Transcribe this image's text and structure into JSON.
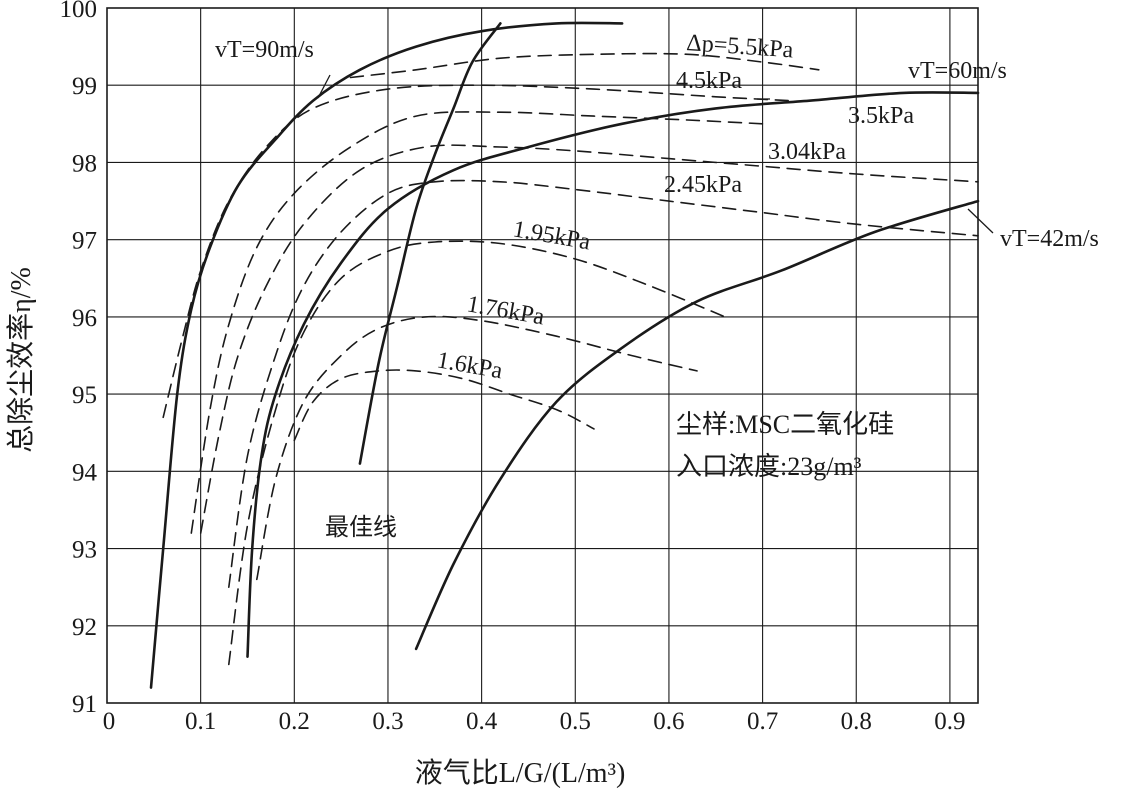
{
  "chart_data": {
    "type": "line",
    "xlabel": "液气比L/G/(L/m³)",
    "ylabel": "总除尘效率η/%",
    "xlim": [
      0,
      0.93
    ],
    "ylim": [
      91,
      100
    ],
    "x_ticks": [
      "0",
      "0.1",
      "0.2",
      "0.3",
      "0.4",
      "0.5",
      "0.6",
      "0.7",
      "0.8",
      "0.9"
    ],
    "y_ticks": [
      "91",
      "92",
      "93",
      "94",
      "95",
      "96",
      "97",
      "98",
      "99",
      "100"
    ],
    "grid": true,
    "annotations": [
      "尘样:MSC二氧化硅",
      "入口浓度:23g/m³"
    ],
    "series": [
      {
        "name": "vT=90m/s",
        "style": "solid",
        "x": [
          0.047,
          0.06,
          0.075,
          0.09,
          0.11,
          0.14,
          0.18,
          0.22,
          0.27,
          0.33,
          0.4,
          0.48,
          0.55
        ],
        "y": [
          91.2,
          93.0,
          95.0,
          96.1,
          96.9,
          97.7,
          98.3,
          98.8,
          99.2,
          99.5,
          99.7,
          99.8,
          99.8
        ]
      },
      {
        "name": "vT=60m/s",
        "style": "solid",
        "x": [
          0.15,
          0.155,
          0.165,
          0.18,
          0.21,
          0.25,
          0.3,
          0.37,
          0.45,
          0.55,
          0.65,
          0.75,
          0.85,
          0.93
        ],
        "y": [
          91.6,
          93.0,
          94.2,
          95.0,
          95.9,
          96.7,
          97.4,
          97.9,
          98.2,
          98.5,
          98.7,
          98.8,
          98.9,
          98.9
        ]
      },
      {
        "name": "vT=42m/s",
        "style": "solid",
        "x": [
          0.33,
          0.37,
          0.42,
          0.48,
          0.55,
          0.63,
          0.72,
          0.82,
          0.93
        ],
        "y": [
          91.7,
          92.8,
          93.9,
          94.9,
          95.6,
          96.2,
          96.6,
          97.1,
          97.5
        ]
      },
      {
        "name": "最佳线",
        "style": "solid",
        "x": [
          0.27,
          0.29,
          0.31,
          0.33,
          0.35,
          0.37,
          0.39,
          0.42
        ],
        "y": [
          94.1,
          95.4,
          96.4,
          97.4,
          98.1,
          98.7,
          99.3,
          99.8
        ]
      },
      {
        "name": "Δp=5.5kPa",
        "style": "dashed",
        "x": [
          0.26,
          0.33,
          0.42,
          0.52,
          0.62,
          0.7,
          0.76
        ],
        "y": [
          99.1,
          99.2,
          99.35,
          99.4,
          99.4,
          99.3,
          99.2
        ]
      },
      {
        "name": "4.5kPa",
        "style": "dashed",
        "x": [
          0.06,
          0.08,
          0.1,
          0.13,
          0.17,
          0.22,
          0.3,
          0.4,
          0.52,
          0.65,
          0.73
        ],
        "y": [
          94.7,
          95.7,
          96.6,
          97.5,
          98.2,
          98.7,
          98.95,
          99.0,
          98.95,
          98.85,
          98.8
        ]
      },
      {
        "name": "3.5kPa",
        "style": "dashed",
        "x": [
          0.09,
          0.11,
          0.13,
          0.16,
          0.2,
          0.26,
          0.33,
          0.42,
          0.52,
          0.62,
          0.7
        ],
        "y": [
          93.2,
          94.8,
          95.9,
          96.9,
          97.6,
          98.2,
          98.6,
          98.65,
          98.6,
          98.55,
          98.5
        ]
      },
      {
        "name": "3.04kPa",
        "style": "dashed",
        "x": [
          0.1,
          0.12,
          0.14,
          0.17,
          0.21,
          0.27,
          0.34,
          0.42,
          0.5,
          0.6,
          0.7,
          0.8,
          0.93
        ],
        "y": [
          93.2,
          94.5,
          95.5,
          96.4,
          97.2,
          97.9,
          98.2,
          98.2,
          98.15,
          98.05,
          97.95,
          97.85,
          97.75
        ]
      },
      {
        "name": "2.45kPa",
        "style": "dashed",
        "x": [
          0.13,
          0.15,
          0.18,
          0.21,
          0.25,
          0.3,
          0.35,
          0.42,
          0.5,
          0.6,
          0.7,
          0.8,
          0.93
        ],
        "y": [
          92.5,
          94.2,
          95.5,
          96.4,
          97.1,
          97.6,
          97.75,
          97.75,
          97.65,
          97.5,
          97.35,
          97.2,
          97.05
        ]
      },
      {
        "name": "1.95kPa",
        "style": "dashed",
        "x": [
          0.13,
          0.15,
          0.18,
          0.21,
          0.25,
          0.3,
          0.35,
          0.42,
          0.5,
          0.58,
          0.66
        ],
        "y": [
          91.5,
          93.3,
          94.8,
          95.8,
          96.5,
          96.85,
          96.97,
          96.95,
          96.75,
          96.4,
          96.0
        ]
      },
      {
        "name": "1.76kPa",
        "style": "dashed",
        "x": [
          0.16,
          0.18,
          0.21,
          0.25,
          0.29,
          0.34,
          0.4,
          0.48,
          0.56,
          0.63
        ],
        "y": [
          92.6,
          93.9,
          94.9,
          95.5,
          95.85,
          96.0,
          95.95,
          95.75,
          95.5,
          95.3
        ]
      },
      {
        "name": "1.6kPa",
        "style": "dashed",
        "x": [
          0.2,
          0.22,
          0.25,
          0.29,
          0.33,
          0.38,
          0.43,
          0.48,
          0.52
        ],
        "y": [
          94.4,
          94.9,
          95.2,
          95.3,
          95.3,
          95.2,
          95.0,
          94.8,
          94.55
        ]
      }
    ],
    "labels": [
      {
        "text": "vT=90m/s"
      },
      {
        "text": "Δp=5.5kPa"
      },
      {
        "text": "4.5kPa"
      },
      {
        "text": "vT=60m/s"
      },
      {
        "text": "3.5kPa"
      },
      {
        "text": "3.04kPa"
      },
      {
        "text": "2.45kPa"
      },
      {
        "text": "vT=42m/s"
      },
      {
        "text": "1.95kPa"
      },
      {
        "text": "1.76kPa"
      },
      {
        "text": "1.6kPa"
      },
      {
        "text": "最佳线"
      }
    ]
  }
}
